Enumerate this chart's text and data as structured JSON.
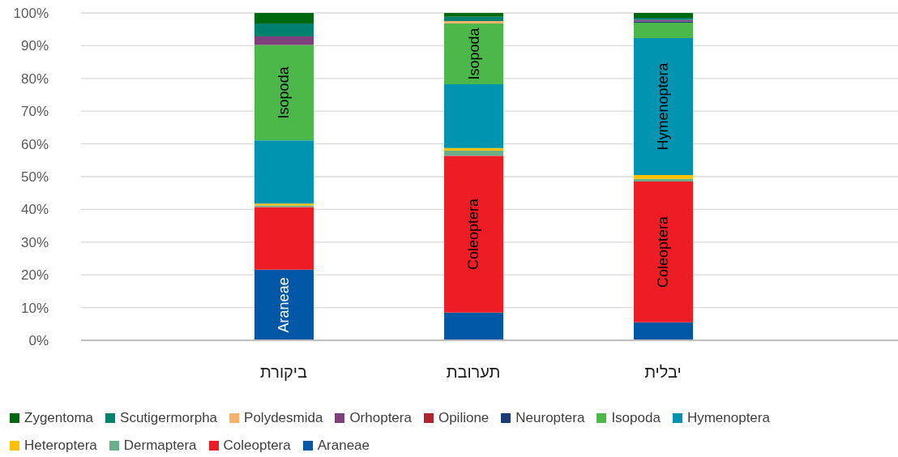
{
  "chart_data": {
    "type": "bar",
    "stacked": true,
    "categories": [
      "ביקורת",
      "תערובת",
      "יבלית"
    ],
    "series": [
      {
        "name": "Araneae",
        "color": "#0057a5",
        "values": [
          21.6,
          8.5,
          5.5
        ],
        "value_labels": [
          "Araneae",
          null,
          null
        ]
      },
      {
        "name": "Coleoptera",
        "color": "#ee1c25",
        "values": [
          19.1,
          47.9,
          43.0
        ],
        "value_labels": [
          null,
          "Coleoptera",
          "Coleoptera"
        ]
      },
      {
        "name": "Dermaptera",
        "color": "#6aae8a",
        "values": [
          0.5,
          1.5,
          0.8
        ]
      },
      {
        "name": "Heteroptera",
        "color": "#ffc000",
        "values": [
          0.6,
          0.8,
          1.2
        ]
      },
      {
        "name": "Hymenoptera",
        "color": "#0094b0",
        "values": [
          19.3,
          19.5,
          41.8
        ],
        "value_labels": [
          null,
          null,
          "Hymenoptera"
        ]
      },
      {
        "name": "Isopoda",
        "color": "#4cb84a",
        "values": [
          29.1,
          18.6,
          4.7
        ],
        "value_labels": [
          "Isopoda",
          "Isopoda",
          null
        ]
      },
      {
        "name": "Neuroptera",
        "color": "#1b3a78",
        "values": [
          0,
          0,
          0.4
        ]
      },
      {
        "name": "Opilione",
        "color": "#b0252e",
        "values": [
          0,
          0,
          0
        ]
      },
      {
        "name": "Orhoptera",
        "color": "#7f3f7a",
        "values": [
          2.6,
          0,
          0.5
        ]
      },
      {
        "name": "Polydesmida",
        "color": "#f8b26a",
        "values": [
          0,
          0.7,
          0
        ]
      },
      {
        "name": "Scutigermorpha",
        "color": "#00806e",
        "values": [
          4.0,
          1.3,
          0.6
        ]
      },
      {
        "name": "Zygentoma",
        "color": "#00680e",
        "values": [
          3.2,
          1.2,
          1.5
        ]
      }
    ],
    "ylim": [
      0,
      100
    ],
    "yticks": [
      {
        "value": 0,
        "label": "0%"
      },
      {
        "value": 10,
        "label": "10%"
      },
      {
        "value": 20,
        "label": "20%"
      },
      {
        "value": 30,
        "label": "30%"
      },
      {
        "value": 40,
        "label": "40%"
      },
      {
        "value": 50,
        "label": "50%"
      },
      {
        "value": 60,
        "label": "60%"
      },
      {
        "value": 70,
        "label": "70%"
      },
      {
        "value": 80,
        "label": "80%"
      },
      {
        "value": 90,
        "label": "90%"
      },
      {
        "value": 100,
        "label": "100%"
      }
    ],
    "grid": "y",
    "legend": "bottom"
  }
}
